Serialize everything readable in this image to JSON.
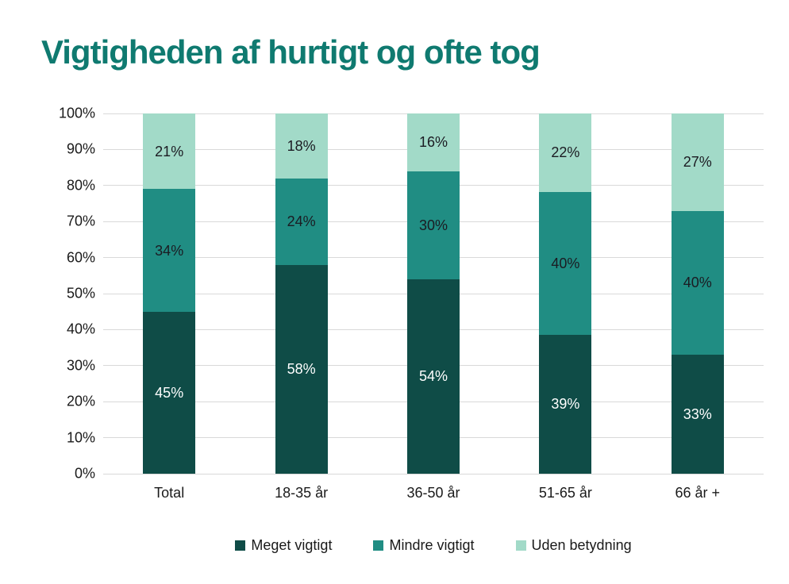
{
  "colors": {
    "title": "#0f7a70",
    "gridline": "#d9d9d9",
    "axis_text": "#1a1a1a",
    "background": "#ffffff"
  },
  "chart_data": {
    "type": "bar",
    "stacked": true,
    "title": "Vigtigheden af hurtigt og ofte tog",
    "categories": [
      "Total",
      "18-35 år",
      "36-50 år",
      "51-65 år",
      "66 år +"
    ],
    "series": [
      {
        "name": "Meget vigtigt",
        "color": "#0f4c47",
        "label_color": "#ffffff",
        "values": [
          45,
          58,
          54,
          39,
          33
        ]
      },
      {
        "name": "Mindre vigtigt",
        "color": "#208d83",
        "label_color": "#1b1b22",
        "values": [
          34,
          24,
          30,
          40,
          40
        ]
      },
      {
        "name": "Uden betydning",
        "color": "#a2dac8",
        "label_color": "#1b1b22",
        "values": [
          21,
          18,
          16,
          22,
          27
        ]
      }
    ],
    "value_suffix": "%",
    "yticks": [
      "0%",
      "10%",
      "20%",
      "30%",
      "40%",
      "50%",
      "60%",
      "70%",
      "80%",
      "90%",
      "100%"
    ],
    "ylim": [
      0,
      100
    ],
    "grid": true,
    "legend_position": "bottom",
    "xlabel": "",
    "ylabel": ""
  }
}
